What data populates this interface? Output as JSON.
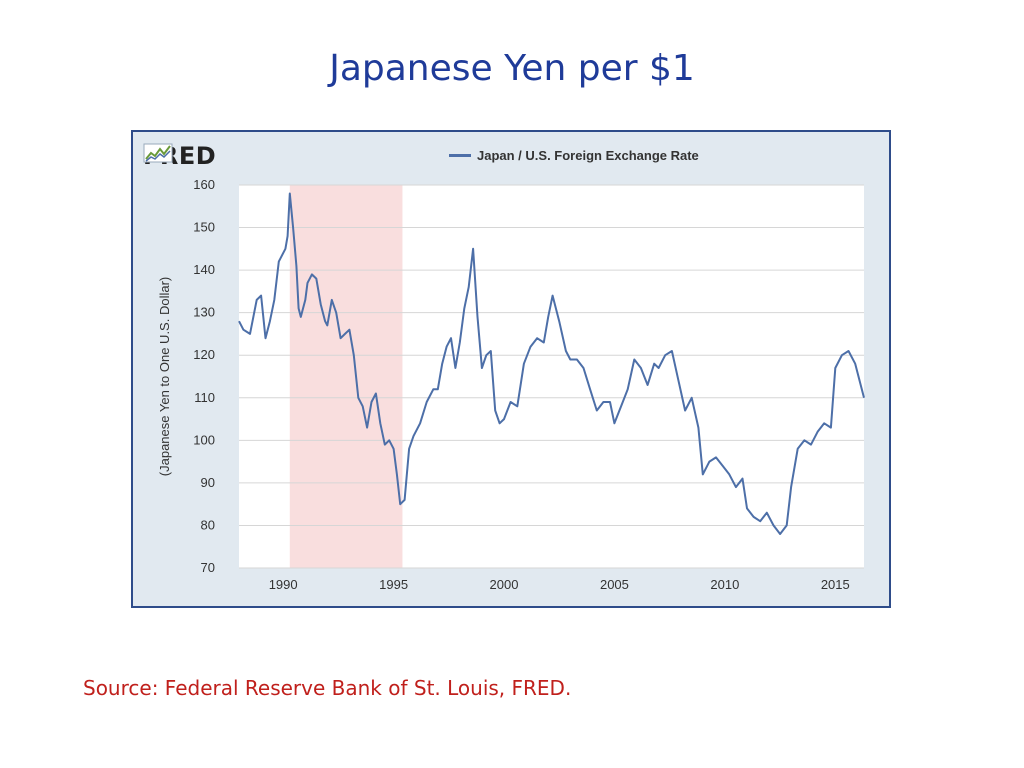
{
  "slide": {
    "title": "Japanese Yen per $1",
    "source": "Source:  Federal Reserve Bank of St. Louis, FRED."
  },
  "logo": {
    "text": "FRED",
    "icon": "fred-chart-icon"
  },
  "colors": {
    "title": "#1f3b99",
    "source": "#c0201c",
    "line": "#4d6fa8",
    "recession": "#f9dede",
    "frame": "#2e4c8a",
    "chart_bg": "#e1e9f0"
  },
  "chart_data": {
    "type": "line",
    "title": "",
    "xlabel": "",
    "ylabel": "(Japanese Yen to One U.S. Dollar)",
    "xlim": [
      1988,
      2016.3
    ],
    "ylim": [
      70,
      160
    ],
    "x_ticks": [
      1990,
      1995,
      2000,
      2005,
      2010,
      2015
    ],
    "y_ticks": [
      70,
      80,
      90,
      100,
      110,
      120,
      130,
      140,
      150,
      160
    ],
    "grid": true,
    "legend": "top-center",
    "shaded_regions": [
      {
        "x_start": 1990.3,
        "x_end": 1995.4,
        "color": "#f9dede"
      }
    ],
    "series": [
      {
        "name": "Japan / U.S. Foreign Exchange Rate",
        "x": [
          1988.0,
          1988.2,
          1988.5,
          1988.8,
          1989.0,
          1989.2,
          1989.4,
          1989.6,
          1989.8,
          1989.9,
          1990.1,
          1990.2,
          1990.3,
          1990.45,
          1990.6,
          1990.7,
          1990.8,
          1991.0,
          1991.1,
          1991.3,
          1991.5,
          1991.7,
          1991.9,
          1992.0,
          1992.2,
          1992.4,
          1992.6,
          1992.8,
          1993.0,
          1993.2,
          1993.4,
          1993.6,
          1993.8,
          1994.0,
          1994.2,
          1994.4,
          1994.6,
          1994.8,
          1995.0,
          1995.15,
          1995.3,
          1995.5,
          1995.7,
          1995.9,
          1996.2,
          1996.5,
          1996.8,
          1997.0,
          1997.2,
          1997.4,
          1997.6,
          1997.8,
          1998.0,
          1998.2,
          1998.4,
          1998.6,
          1998.8,
          1999.0,
          1999.2,
          1999.4,
          1999.6,
          1999.8,
          2000.0,
          2000.3,
          2000.6,
          2000.9,
          2001.2,
          2001.5,
          2001.8,
          2002.0,
          2002.2,
          2002.5,
          2002.8,
          2003.0,
          2003.3,
          2003.6,
          2003.9,
          2004.2,
          2004.5,
          2004.8,
          2005.0,
          2005.3,
          2005.6,
          2005.9,
          2006.2,
          2006.5,
          2006.8,
          2007.0,
          2007.3,
          2007.6,
          2007.9,
          2008.2,
          2008.5,
          2008.8,
          2009.0,
          2009.3,
          2009.6,
          2009.9,
          2010.2,
          2010.5,
          2010.8,
          2011.0,
          2011.3,
          2011.6,
          2011.9,
          2012.2,
          2012.5,
          2012.8,
          2013.0,
          2013.3,
          2013.6,
          2013.9,
          2014.2,
          2014.5,
          2014.8,
          2015.0,
          2015.3,
          2015.6,
          2015.9,
          2016.1,
          2016.3
        ],
        "values": [
          128,
          126,
          125,
          133,
          134,
          124,
          128,
          133,
          142,
          143,
          145,
          148,
          158,
          150,
          141,
          131,
          129,
          133,
          137,
          139,
          138,
          132,
          128,
          127,
          133,
          130,
          124,
          125,
          126,
          120,
          110,
          108,
          103,
          109,
          111,
          104,
          99,
          100,
          98,
          92,
          85,
          86,
          98,
          101,
          104,
          109,
          112,
          112,
          118,
          122,
          124,
          117,
          123,
          131,
          136,
          145,
          129,
          117,
          120,
          121,
          107,
          104,
          105,
          109,
          108,
          118,
          122,
          124,
          123,
          129,
          134,
          128,
          121,
          119,
          119,
          117,
          112,
          107,
          109,
          109,
          104,
          108,
          112,
          119,
          117,
          113,
          118,
          117,
          120,
          121,
          114,
          107,
          110,
          103,
          92,
          95,
          96,
          94,
          92,
          89,
          91,
          84,
          82,
          81,
          83,
          80,
          78,
          80,
          89,
          98,
          100,
          99,
          102,
          104,
          103,
          117,
          120,
          121,
          118,
          114,
          110
        ]
      }
    ]
  }
}
